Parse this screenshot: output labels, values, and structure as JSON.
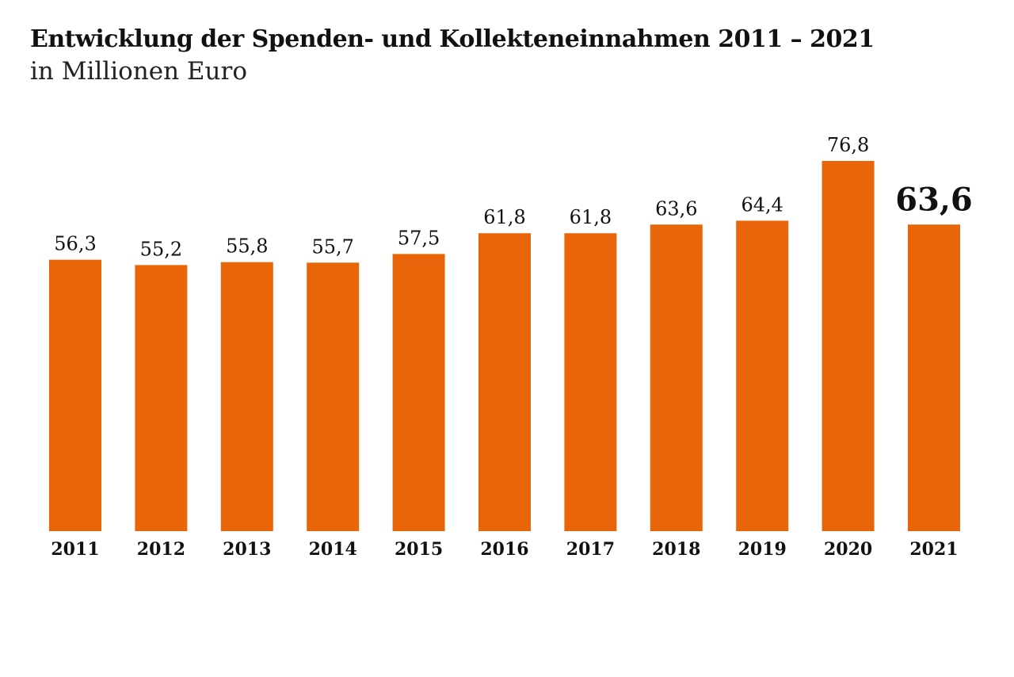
{
  "title": "Entwicklung der Spenden- und Kollekteneinnahmen 2011 – 2021",
  "subtitle": "in Millionen Euro",
  "colors": {
    "bar": "#E8650A",
    "highlight_text": "#E8650A",
    "text": "#111111"
  },
  "chart_data": {
    "type": "bar",
    "title": "Entwicklung der Spenden- und Kollekteneinnahmen 2011 – 2021",
    "subtitle": "in Millionen Euro",
    "categories": [
      "2011",
      "2012",
      "2013",
      "2014",
      "2015",
      "2016",
      "2017",
      "2018",
      "2019",
      "2020",
      "2021"
    ],
    "values": [
      56.3,
      55.2,
      55.8,
      55.7,
      57.5,
      61.8,
      61.8,
      63.6,
      64.4,
      76.8,
      63.6
    ],
    "value_labels": [
      "56,3",
      "55,2",
      "55,8",
      "55,7",
      "57,5",
      "61,8",
      "61,8",
      "63,6",
      "64,4",
      "76,8",
      "63,6"
    ],
    "highlight_category": "2021",
    "xlabel": "",
    "ylabel": "",
    "grid": false,
    "legend": "none"
  }
}
